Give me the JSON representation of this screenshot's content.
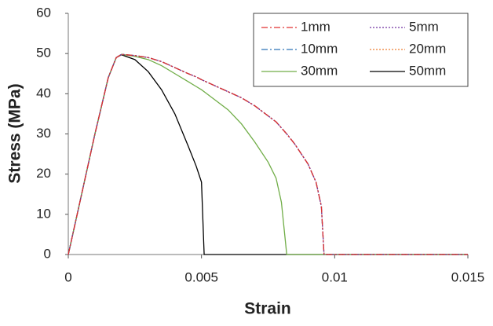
{
  "chart_data": {
    "type": "line",
    "x_label": "Strain",
    "y_label": "Stress (MPa)",
    "x": [
      0,
      0.0005,
      0.001,
      0.0015,
      0.0018,
      0.002,
      0.0025,
      0.003,
      0.0035,
      0.004,
      0.0045,
      0.0048,
      0.005,
      0.0051,
      0.0055,
      0.006,
      0.0065,
      0.007,
      0.0075,
      0.0078,
      0.008,
      0.0082,
      0.0085,
      0.009,
      0.0093,
      0.0095,
      0.0096,
      0.01,
      0.015
    ],
    "series": [
      {
        "name": "1mm",
        "color": "#e03030",
        "dash": "8,3,2,3",
        "values": [
          0,
          15,
          30,
          44,
          49,
          49.8,
          49.5,
          49,
          48,
          46.5,
          45,
          44.2,
          43.5,
          43.2,
          42,
          40.5,
          39,
          37,
          34.5,
          33,
          31.5,
          30,
          27.5,
          22.5,
          18,
          12,
          0,
          0,
          0
        ]
      },
      {
        "name": "5mm",
        "color": "#7030a0",
        "dash": "2,2",
        "values": [
          0,
          15,
          30,
          44,
          49,
          49.8,
          49.5,
          49,
          48,
          46.5,
          45,
          44.2,
          43.5,
          43.2,
          42,
          40.5,
          39,
          37,
          34.5,
          33,
          31.5,
          30,
          27.5,
          22.5,
          18,
          12,
          0,
          0,
          0
        ]
      },
      {
        "name": "10mm",
        "color": "#2e75b6",
        "dash": "8,3,2,3",
        "values": [
          0,
          15,
          30,
          44,
          49,
          49.8,
          49.5,
          49,
          48,
          46.5,
          45,
          44.2,
          43.5,
          43.2,
          42,
          40.5,
          39,
          37,
          34.5,
          33,
          31.5,
          30,
          27.5,
          22.5,
          18,
          12,
          0,
          0,
          0
        ]
      },
      {
        "name": "20mm",
        "color": "#ed7d31",
        "dash": "2,2",
        "values": [
          0,
          15,
          30,
          44,
          49,
          49.8,
          49.5,
          49,
          48,
          46.5,
          45,
          44.2,
          43.5,
          43.2,
          42,
          40.5,
          39,
          37,
          34.5,
          33,
          31.5,
          30,
          27.5,
          22.5,
          18,
          12,
          0,
          0,
          0
        ]
      },
      {
        "name": "30mm",
        "color": "#70ad47",
        "dash": "none",
        "values": [
          0,
          15,
          30,
          44,
          49,
          49.8,
          49.3,
          48.5,
          47,
          45,
          43,
          41.8,
          41,
          40.5,
          38.5,
          36,
          32.5,
          28,
          23,
          19,
          13,
          0,
          0,
          0,
          0,
          0,
          0,
          0,
          0
        ]
      },
      {
        "name": "50mm",
        "color": "#000000",
        "dash": "none",
        "values": [
          0,
          15,
          30,
          44,
          49,
          49.7,
          48.5,
          45.5,
          41,
          35,
          27,
          22,
          18,
          0,
          0,
          0,
          0,
          0,
          0,
          0,
          0,
          0,
          0,
          0,
          0,
          0,
          0,
          0,
          0
        ]
      }
    ],
    "xlim": [
      0,
      0.015
    ],
    "xticks": [
      0,
      0.005,
      0.01,
      0.015
    ],
    "ylim": [
      0,
      60
    ],
    "yticks": [
      0,
      10,
      20,
      30,
      40,
      50,
      60
    ],
    "grid": false,
    "legend": "upper right"
  }
}
